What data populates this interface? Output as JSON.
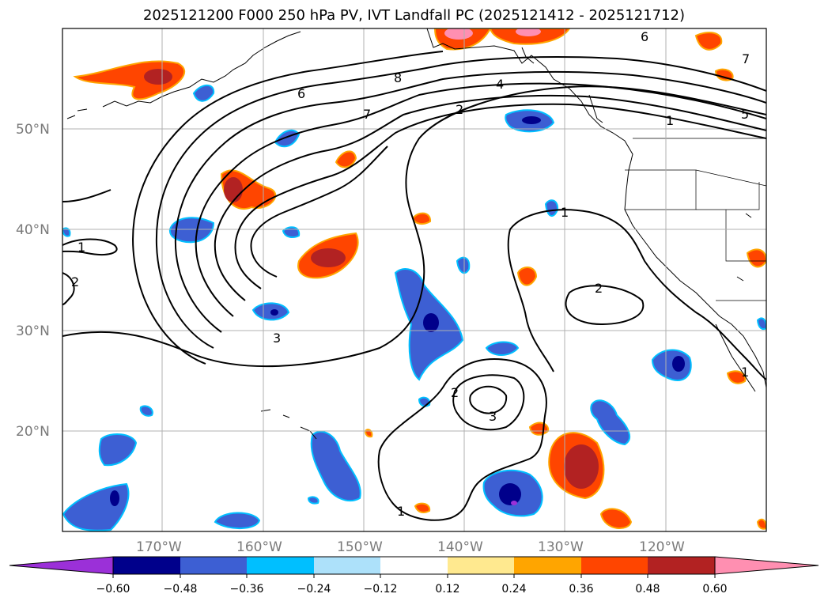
{
  "title": "2025121200 F000 250 hPa PV, IVT Landfall PC (2025121412 - 2025121712)",
  "map": {
    "lat_labels": [
      "50°N",
      "40°N",
      "30°N",
      "20°N"
    ],
    "lon_labels": [
      "170°W",
      "160°W",
      "150°W",
      "140°W",
      "130°W",
      "120°W"
    ],
    "contour_labels": [
      "6",
      "8",
      "4",
      "7",
      "2",
      "6",
      "7",
      "1",
      "5",
      "1",
      "1",
      "2",
      "1",
      "2",
      "2",
      "3",
      "3",
      "1",
      "1"
    ]
  },
  "colorbar": {
    "ticks": [
      "−0.60",
      "−0.48",
      "−0.36",
      "−0.24",
      "−0.12",
      "0.12",
      "0.24",
      "0.36",
      "0.48",
      "0.60"
    ],
    "colors": [
      "#9b30d8",
      "#00008b",
      "#3d5fd3",
      "#00bfff",
      "#ade1fa",
      "#ffffff",
      "#ffe98f",
      "#ffa500",
      "#ff4500",
      "#b22222",
      "#ff8fb1"
    ]
  }
}
